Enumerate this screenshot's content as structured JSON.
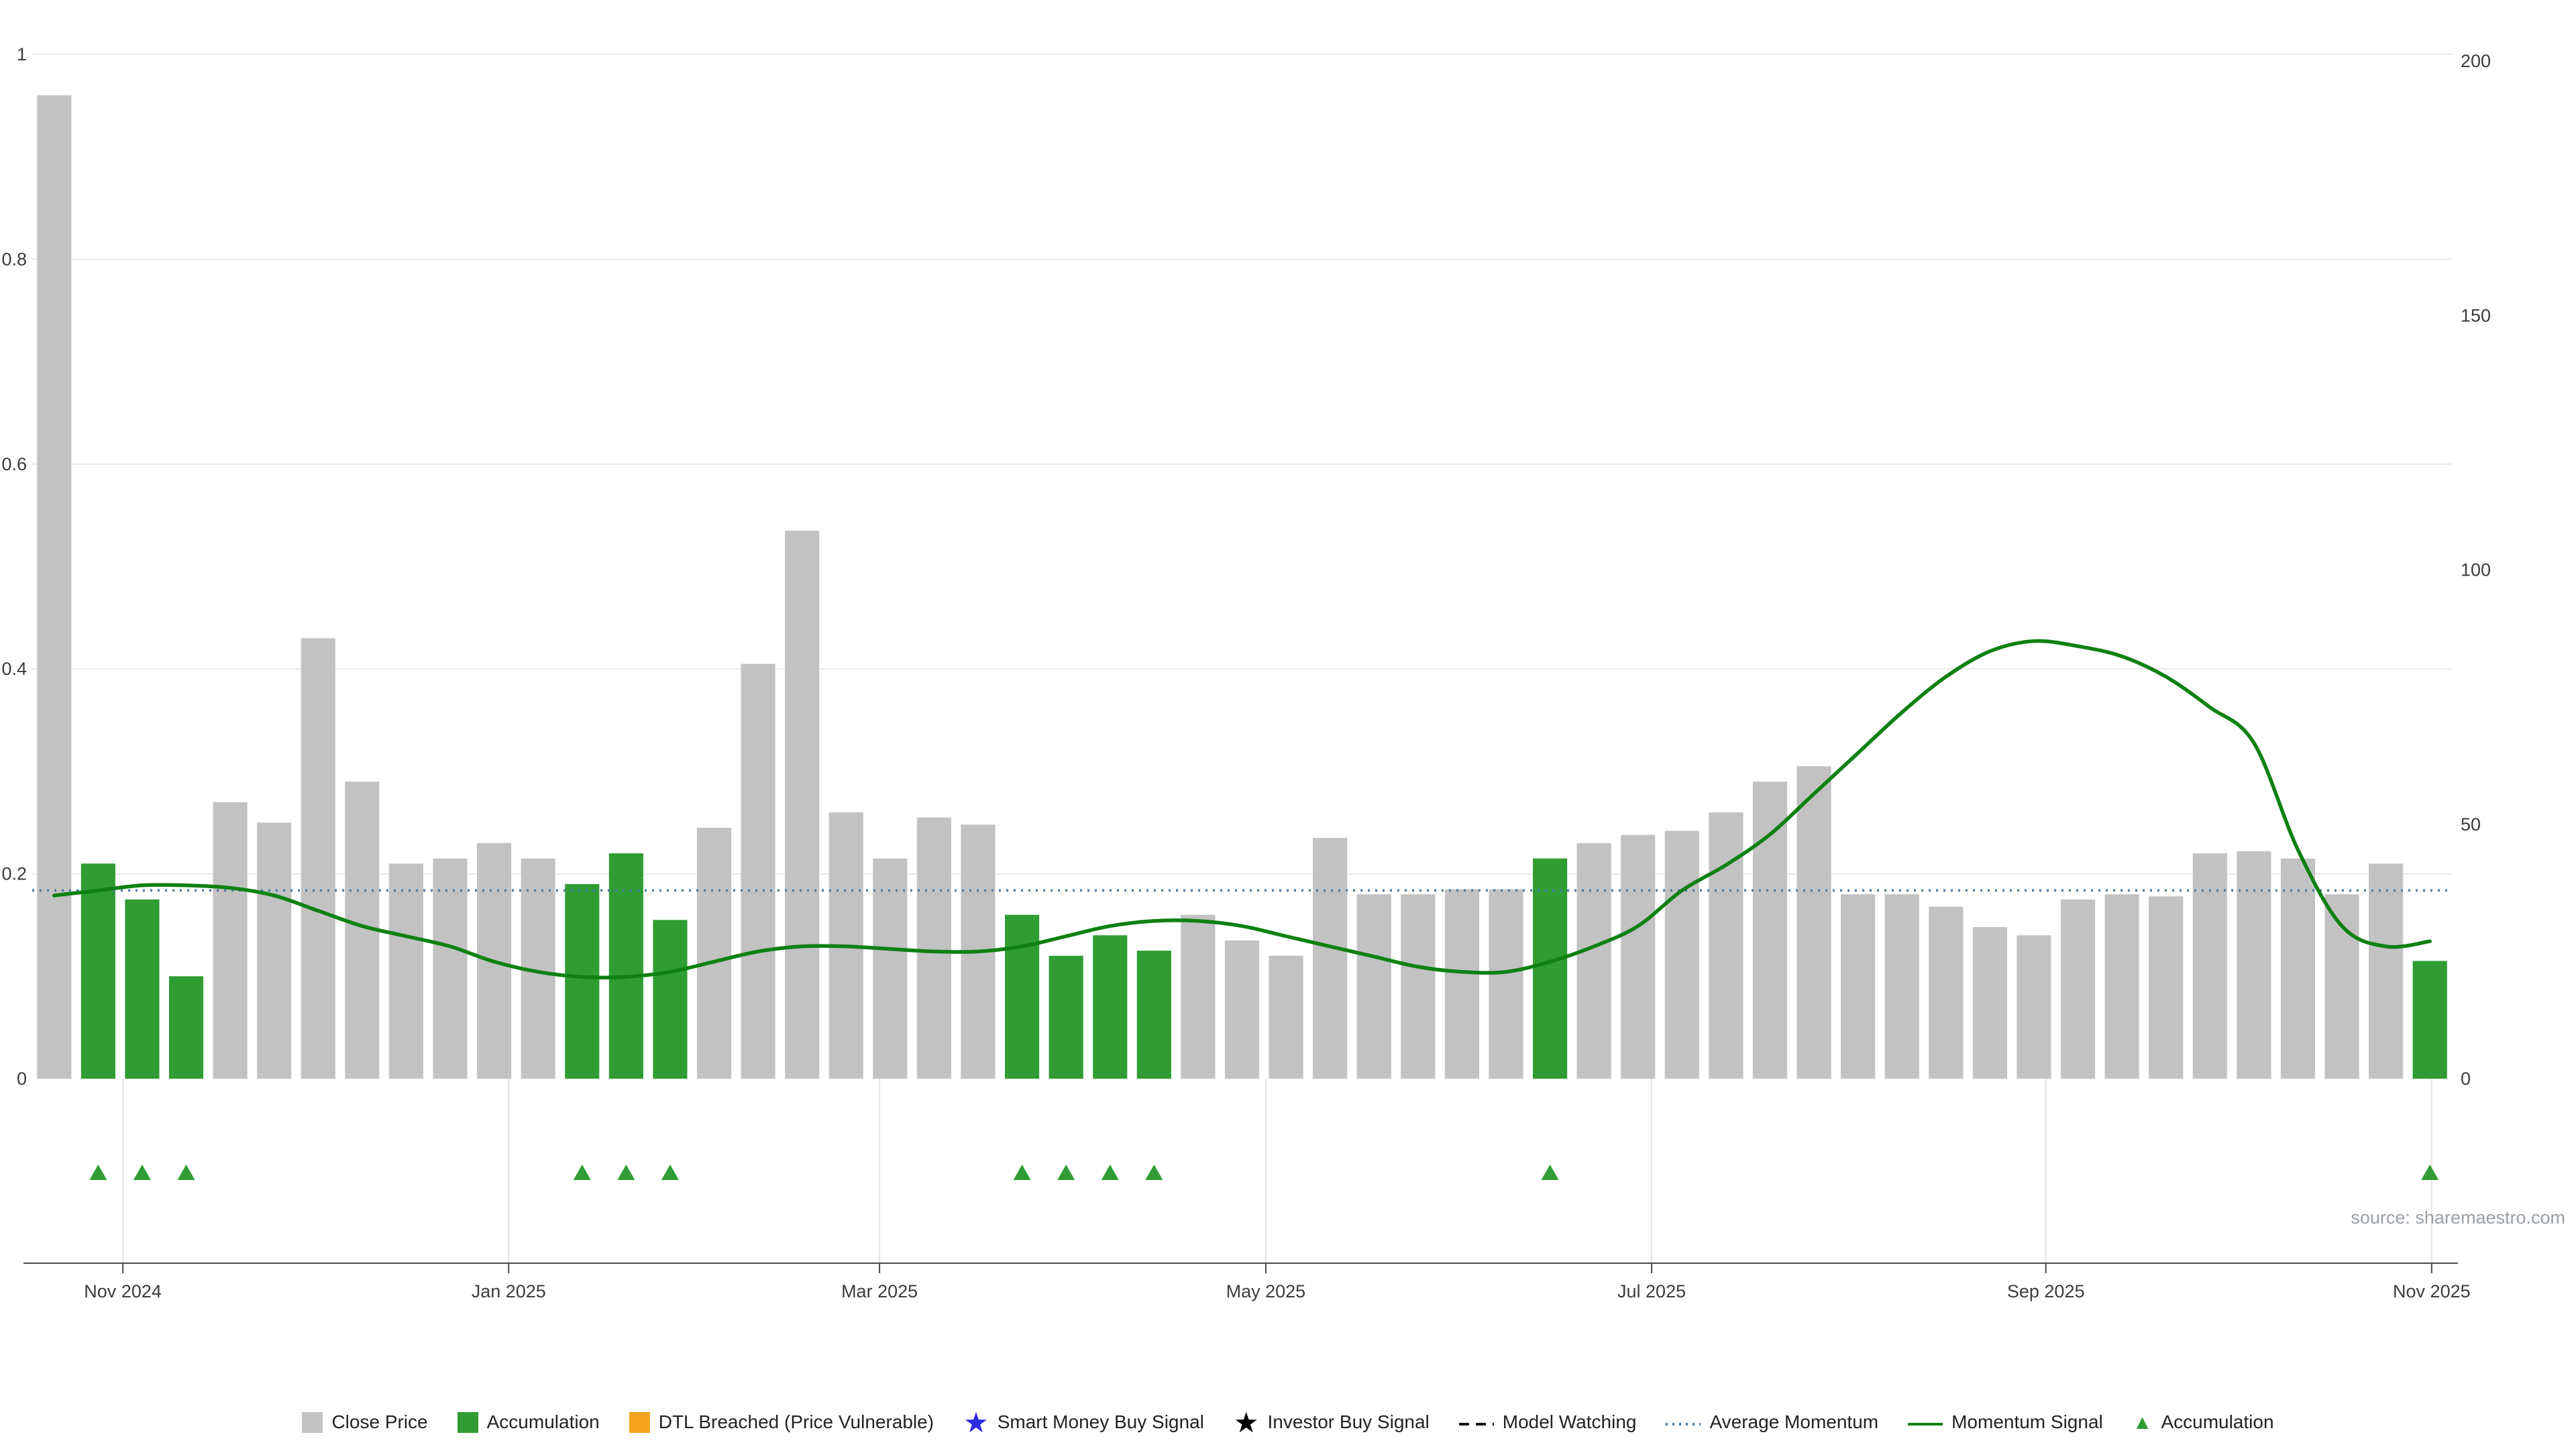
{
  "source": "source: sharemaestro.com",
  "chart_data": {
    "type": "bar",
    "title": "",
    "xlabel": "",
    "ylabel": "",
    "x_tick_labels": [
      "Nov 2024",
      "Jan 2025",
      "Mar 2025",
      "May 2025",
      "Jul 2025",
      "Sep 2025",
      "Nov 2025"
    ],
    "x_tick_positions": [
      1.56,
      10.33,
      18.76,
      27.54,
      36.31,
      45.27,
      54.04
    ],
    "left_axis": {
      "tick_labels": [
        "0",
        "0.2",
        "0.4",
        "0.6",
        "0.8",
        "1"
      ],
      "tick_values": [
        0,
        0.2,
        0.4,
        0.6,
        0.8,
        1
      ],
      "range": [
        0,
        1
      ]
    },
    "right_axis": {
      "tick_labels": [
        "0",
        "50",
        "100",
        "150",
        "200"
      ],
      "tick_values": [
        0,
        50,
        100,
        150,
        200
      ],
      "range": [
        0,
        200
      ]
    },
    "bars": {
      "name": "Close Price",
      "color_close": "#c2c2c2",
      "color_accumulation": "#2f9d33",
      "values": [
        0.96,
        0.21,
        0.175,
        0.1,
        0.27,
        0.25,
        0.43,
        0.29,
        0.21,
        0.215,
        0.23,
        0.215,
        0.19,
        0.22,
        0.155,
        0.245,
        0.405,
        0.535,
        0.26,
        0.215,
        0.255,
        0.248,
        0.16,
        0.12,
        0.14,
        0.125,
        0.16,
        0.135,
        0.12,
        0.235,
        0.18,
        0.18,
        0.185,
        0.185,
        0.215,
        0.23,
        0.238,
        0.242,
        0.26,
        0.29,
        0.305,
        0.18,
        0.18,
        0.168,
        0.148,
        0.14,
        0.175,
        0.18,
        0.178,
        0.22,
        0.222,
        0.215,
        0.18,
        0.21,
        0.115
      ],
      "accumulation_indices": [
        1,
        2,
        3,
        12,
        13,
        14,
        22,
        23,
        24,
        25,
        34,
        54
      ]
    },
    "momentum_signal": {
      "name": "Momentum Signal",
      "axis": "right",
      "color": "#0e8112",
      "values": [
        36,
        37,
        38,
        38,
        37.5,
        36,
        33,
        30,
        28,
        26,
        23,
        21,
        20,
        20,
        21,
        23,
        25,
        26,
        26,
        25.5,
        25,
        25,
        26,
        28,
        30,
        31,
        31,
        30,
        28,
        26,
        24,
        22,
        21,
        21,
        23,
        26,
        30,
        37,
        42,
        48,
        56,
        64,
        72,
        79,
        84,
        86,
        85,
        83,
        79,
        73,
        66,
        45,
        30,
        26,
        27
      ]
    },
    "average_momentum": {
      "name": "Average Momentum",
      "axis": "right",
      "color": "#4a7ba6",
      "value": 37
    },
    "accumulation_markers": {
      "name": "Accumulation",
      "color": "#2f9d33",
      "indices": [
        1,
        2,
        3,
        12,
        13,
        14,
        22,
        23,
        24,
        25,
        34,
        54
      ]
    }
  },
  "legend": {
    "items": [
      {
        "label": "Close Price",
        "swatch": "square",
        "color": "#c2c2c2"
      },
      {
        "label": "Accumulation",
        "swatch": "square",
        "color": "#2f9d33"
      },
      {
        "label": "DTL Breached (Price Vulnerable)",
        "swatch": "square",
        "color": "#f5a51d"
      },
      {
        "label": "Smart Money Buy Signal",
        "swatch": "star",
        "color": "#2a2ae0"
      },
      {
        "label": "Investor Buy Signal",
        "swatch": "star",
        "color": "#000000"
      },
      {
        "label": "Model Watching",
        "swatch": "dashed-line",
        "color": "#111111"
      },
      {
        "label": "Average Momentum",
        "swatch": "dotted-line",
        "color": "#4a7ba6"
      },
      {
        "label": "Momentum Signal",
        "swatch": "line",
        "color": "#0e8112"
      },
      {
        "label": "Accumulation",
        "swatch": "triangle",
        "color": "#2f9d33"
      }
    ]
  }
}
